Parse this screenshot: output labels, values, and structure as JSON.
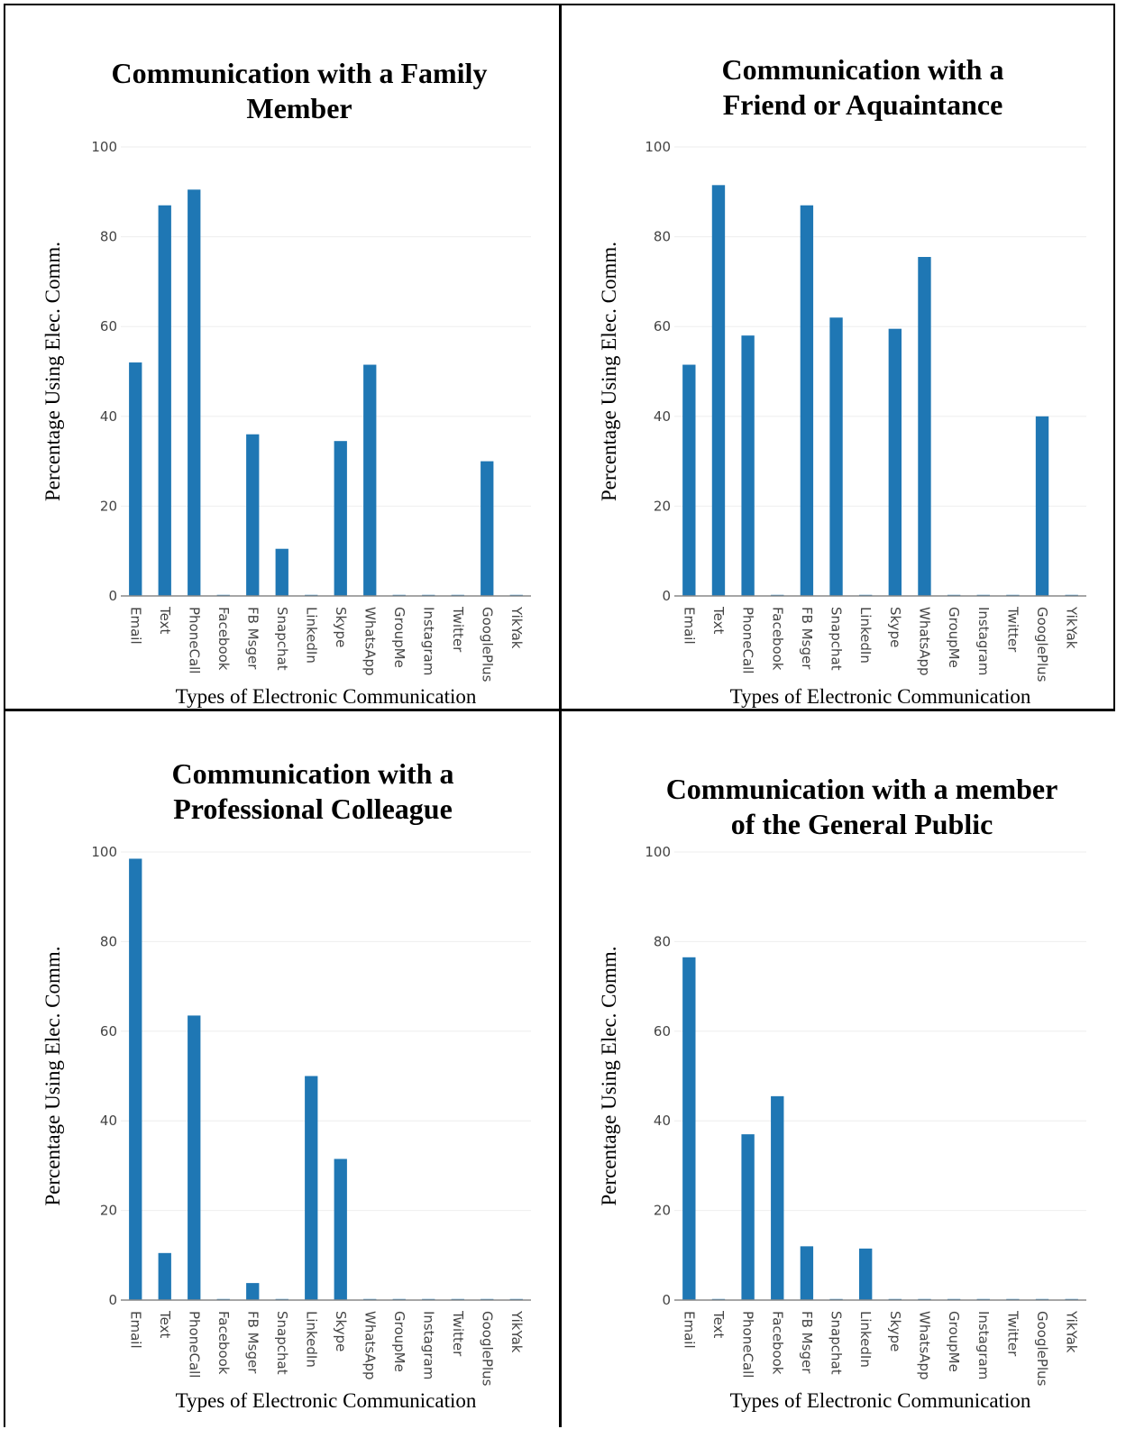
{
  "colors": {
    "bar": "#1f77b4",
    "border": "#000000"
  },
  "chart_data": [
    {
      "type": "bar",
      "title": [
        "Communication with a Family",
        "Member"
      ],
      "xlabel": "Types of Electronic Communication",
      "ylabel": "Percentage Using Elec. Comm.",
      "ylim": [
        0,
        100
      ],
      "yticks": [
        "0",
        "20",
        "40",
        "60",
        "80",
        "100"
      ],
      "grid": true,
      "categories": [
        "Email",
        "Text",
        "PhoneCall",
        "Facebook",
        "FB Msger",
        "Snapchat",
        "LinkedIn",
        "Skype",
        "WhatsApp",
        "GroupMe",
        "Instagram",
        "Twitter",
        "GooglePlus",
        "YikYak"
      ],
      "values": [
        52,
        87,
        90.5,
        0,
        36,
        10.5,
        0,
        34.5,
        51.5,
        0,
        0,
        0,
        30,
        0
      ]
    },
    {
      "type": "bar",
      "title": [
        "Communication with a",
        "Friend or Aquaintance"
      ],
      "xlabel": "Types of Electronic Communication",
      "ylabel": "Percentage Using Elec. Comm.",
      "ylim": [
        0,
        100
      ],
      "yticks": [
        "0",
        "20",
        "40",
        "60",
        "80",
        "100"
      ],
      "grid": true,
      "categories": [
        "Email",
        "Text",
        "PhoneCall",
        "Facebook",
        "FB Msger",
        "Snapchat",
        "LinkedIn",
        "Skype",
        "WhatsApp",
        "GroupMe",
        "Instagram",
        "Twitter",
        "GooglePlus",
        "YikYak"
      ],
      "values": [
        51.5,
        91.5,
        58,
        0,
        87,
        62,
        0,
        59.5,
        75.5,
        0,
        0,
        0,
        40,
        0
      ]
    },
    {
      "type": "bar",
      "title": [
        "Communication with a",
        "Professional Colleague"
      ],
      "xlabel": "Types of Electronic Communication",
      "ylabel": "Percentage Using Elec. Comm.",
      "ylim": [
        0,
        100
      ],
      "yticks": [
        "0",
        "20",
        "40",
        "60",
        "80",
        "100"
      ],
      "grid": true,
      "categories": [
        "Email",
        "Text",
        "PhoneCall",
        "Facebook",
        "FB Msger",
        "Snapchat",
        "LinkedIn",
        "Skype",
        "WhatsApp",
        "GroupMe",
        "Instagram",
        "Twitter",
        "GooglePlus",
        "YikYak"
      ],
      "values": [
        98.5,
        10.5,
        63.5,
        0,
        3.8,
        0,
        50,
        31.5,
        0,
        0,
        0,
        0,
        0,
        0
      ]
    },
    {
      "type": "bar",
      "title": [
        "Communication with a member",
        "of the General Public"
      ],
      "xlabel": "Types of Electronic Communication",
      "ylabel": "Percentage Using Elec. Comm.",
      "ylim": [
        0,
        100
      ],
      "yticks": [
        "0",
        "20",
        "40",
        "60",
        "80",
        "100"
      ],
      "grid": true,
      "categories": [
        "Email",
        "Text",
        "PhoneCall",
        "Facebook",
        "FB Msger",
        "Snapchat",
        "LinkedIn",
        "Skype",
        "WhatsApp",
        "GroupMe",
        "Instagram",
        "Twitter",
        "GooglePlus",
        "YikYak"
      ],
      "values": [
        76.5,
        0,
        37,
        45.5,
        12,
        0,
        11.5,
        0,
        0,
        0,
        0,
        0,
        0,
        0
      ]
    }
  ]
}
